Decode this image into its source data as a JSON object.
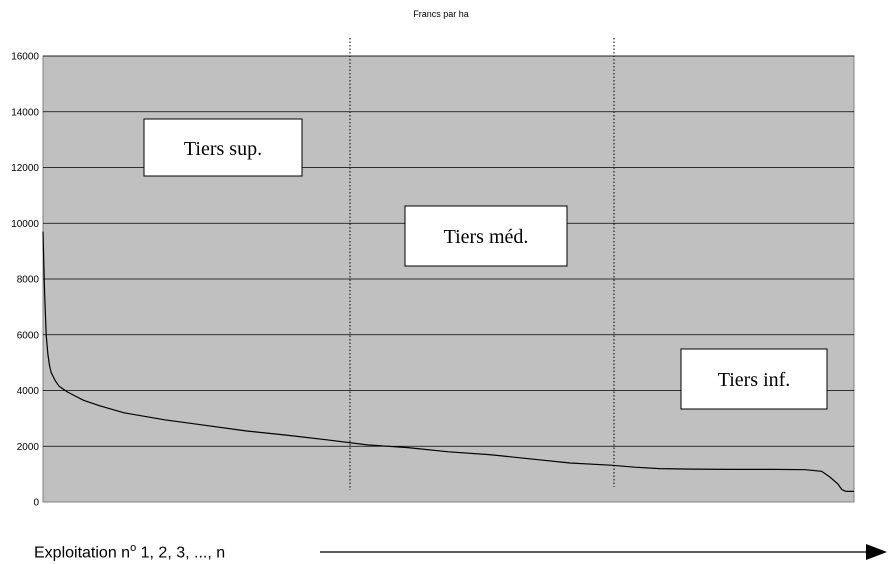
{
  "chart_data": {
    "type": "line",
    "title": "Francs par ha",
    "xlabel_prefix": "Exploitation n",
    "xlabel_sup": "o",
    "xlabel_suffix": " 1, 2, 3, ..., n",
    "ylabel": "",
    "ylim": [
      0,
      16000
    ],
    "yticks": [
      "0",
      "2000",
      "4000",
      "6000",
      "8000",
      "10000",
      "12000",
      "14000",
      "16000"
    ],
    "grid": true,
    "legend": "none",
    "plot_background": "#c0c0c0",
    "line_color": "#000000",
    "x_range": [
      0,
      1
    ],
    "x_description": "exploitations ranked in descending order (fraction of n)",
    "series": [
      {
        "values_x": [
          0,
          0.002,
          0.004,
          0.006,
          0.008,
          0.01,
          0.015,
          0.02,
          0.03,
          0.04,
          0.05,
          0.07,
          0.1,
          0.15,
          0.2,
          0.25,
          0.3,
          0.35,
          0.4,
          0.45,
          0.5,
          0.55,
          0.6,
          0.65,
          0.7,
          0.73,
          0.76,
          0.8,
          0.85,
          0.9,
          0.94,
          0.96,
          0.97,
          0.98,
          0.985,
          0.99,
          1.0
        ],
        "values_y": [
          9700,
          7500,
          6000,
          5300,
          4900,
          4650,
          4350,
          4150,
          3950,
          3800,
          3650,
          3450,
          3200,
          2950,
          2750,
          2550,
          2400,
          2230,
          2050,
          1950,
          1800,
          1700,
          1550,
          1400,
          1320,
          1250,
          1200,
          1180,
          1170,
          1170,
          1160,
          1100,
          900,
          650,
          450,
          380,
          380
        ]
      }
    ],
    "dividers_x": [
      0.3333,
      0.6667
    ],
    "annotations": [
      {
        "text": "Tiers sup."
      },
      {
        "text": "Tiers méd."
      },
      {
        "text": "Tiers inf."
      }
    ]
  }
}
